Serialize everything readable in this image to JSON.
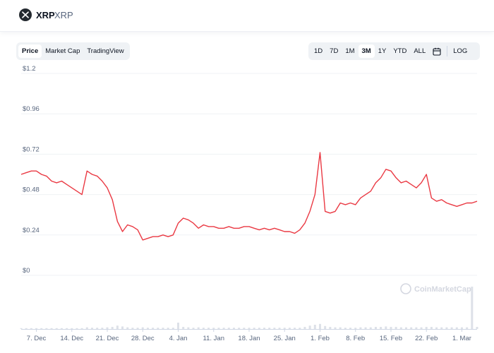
{
  "header": {
    "coin_name": "XRP",
    "coin_symbol": "XRP"
  },
  "view_tabs": [
    {
      "label": "Price",
      "active": true
    },
    {
      "label": "Market Cap",
      "active": false
    },
    {
      "label": "TradingView",
      "active": false
    }
  ],
  "range_tabs": [
    {
      "label": "1D",
      "active": false
    },
    {
      "label": "7D",
      "active": false
    },
    {
      "label": "1M",
      "active": false
    },
    {
      "label": "3M",
      "active": true
    },
    {
      "label": "1Y",
      "active": false
    },
    {
      "label": "YTD",
      "active": false
    },
    {
      "label": "ALL",
      "active": false
    }
  ],
  "calendar_icon": "calendar-icon",
  "log_label": "LOG",
  "watermark": "CoinMarketCap",
  "colors": {
    "line": "#ea3943",
    "grid": "#eff2f5",
    "axis_text": "#58667e",
    "volume": "#dde1e8"
  },
  "chart_data": {
    "type": "line",
    "title": "",
    "xlabel": "",
    "ylabel": "",
    "y_ticks": [
      "$1.2",
      "$0.96",
      "$0.72",
      "$0.48",
      "$0.24",
      "$0"
    ],
    "y_tick_values": [
      1.2,
      0.96,
      0.72,
      0.48,
      0.24,
      0
    ],
    "ylim": [
      0,
      1.2
    ],
    "x_ticks": [
      "7. Dec",
      "14. Dec",
      "21. Dec",
      "28. Dec",
      "4. Jan",
      "11. Jan",
      "18. Jan",
      "25. Jan",
      "1. Feb",
      "8. Feb",
      "15. Feb",
      "22. Feb",
      "1. Mar"
    ],
    "x_range": [
      "2020-12-04",
      "2021-03-04"
    ],
    "grid": true,
    "series": [
      {
        "name": "",
        "x": [
          "2020-12-04",
          "2020-12-05",
          "2020-12-06",
          "2020-12-07",
          "2020-12-08",
          "2020-12-09",
          "2020-12-10",
          "2020-12-11",
          "2020-12-12",
          "2020-12-13",
          "2020-12-14",
          "2020-12-15",
          "2020-12-16",
          "2020-12-17",
          "2020-12-18",
          "2020-12-19",
          "2020-12-20",
          "2020-12-21",
          "2020-12-22",
          "2020-12-23",
          "2020-12-24",
          "2020-12-25",
          "2020-12-26",
          "2020-12-27",
          "2020-12-28",
          "2020-12-29",
          "2020-12-30",
          "2020-12-31",
          "2021-01-01",
          "2021-01-02",
          "2021-01-03",
          "2021-01-04",
          "2021-01-05",
          "2021-01-06",
          "2021-01-07",
          "2021-01-08",
          "2021-01-09",
          "2021-01-10",
          "2021-01-11",
          "2021-01-12",
          "2021-01-13",
          "2021-01-14",
          "2021-01-15",
          "2021-01-16",
          "2021-01-17",
          "2021-01-18",
          "2021-01-19",
          "2021-01-20",
          "2021-01-21",
          "2021-01-22",
          "2021-01-23",
          "2021-01-24",
          "2021-01-25",
          "2021-01-26",
          "2021-01-27",
          "2021-01-28",
          "2021-01-29",
          "2021-01-30",
          "2021-01-31",
          "2021-02-01",
          "2021-02-02",
          "2021-02-03",
          "2021-02-04",
          "2021-02-05",
          "2021-02-06",
          "2021-02-07",
          "2021-02-08",
          "2021-02-09",
          "2021-02-10",
          "2021-02-11",
          "2021-02-12",
          "2021-02-13",
          "2021-02-14",
          "2021-02-15",
          "2021-02-16",
          "2021-02-17",
          "2021-02-18",
          "2021-02-19",
          "2021-02-20",
          "2021-02-21",
          "2021-02-22",
          "2021-02-23",
          "2021-02-24",
          "2021-02-25",
          "2021-02-26",
          "2021-02-27",
          "2021-02-28",
          "2021-03-01",
          "2021-03-02",
          "2021-03-03",
          "2021-03-04"
        ],
        "y": [
          0.6,
          0.61,
          0.62,
          0.62,
          0.6,
          0.59,
          0.56,
          0.55,
          0.56,
          0.54,
          0.52,
          0.5,
          0.48,
          0.62,
          0.6,
          0.59,
          0.56,
          0.52,
          0.45,
          0.32,
          0.26,
          0.3,
          0.29,
          0.27,
          0.21,
          0.22,
          0.23,
          0.23,
          0.24,
          0.23,
          0.24,
          0.31,
          0.34,
          0.33,
          0.31,
          0.28,
          0.3,
          0.29,
          0.29,
          0.28,
          0.28,
          0.29,
          0.28,
          0.28,
          0.29,
          0.29,
          0.28,
          0.27,
          0.28,
          0.27,
          0.28,
          0.27,
          0.26,
          0.26,
          0.25,
          0.27,
          0.31,
          0.38,
          0.48,
          0.73,
          0.38,
          0.37,
          0.38,
          0.43,
          0.42,
          0.43,
          0.42,
          0.46,
          0.48,
          0.5,
          0.55,
          0.58,
          0.63,
          0.62,
          0.58,
          0.55,
          0.56,
          0.54,
          0.52,
          0.55,
          0.6,
          0.46,
          0.44,
          0.45,
          0.43,
          0.42,
          0.41,
          0.42,
          0.43,
          0.43,
          0.44
        ]
      }
    ],
    "volume_y": [
      0.02,
      0.02,
      0.02,
      0.02,
      0.02,
      0.02,
      0.02,
      0.02,
      0.02,
      0.02,
      0.02,
      0.02,
      0.02,
      0.04,
      0.03,
      0.03,
      0.03,
      0.04,
      0.05,
      0.08,
      0.06,
      0.04,
      0.03,
      0.03,
      0.04,
      0.03,
      0.03,
      0.03,
      0.03,
      0.03,
      0.03,
      0.15,
      0.05,
      0.04,
      0.03,
      0.04,
      0.03,
      0.03,
      0.03,
      0.03,
      0.03,
      0.03,
      0.03,
      0.03,
      0.03,
      0.03,
      0.03,
      0.03,
      0.03,
      0.03,
      0.03,
      0.03,
      0.03,
      0.03,
      0.03,
      0.03,
      0.05,
      0.08,
      0.1,
      0.12,
      0.07,
      0.05,
      0.04,
      0.04,
      0.03,
      0.03,
      0.03,
      0.04,
      0.04,
      0.04,
      0.05,
      0.05,
      0.06,
      0.05,
      0.05,
      0.04,
      0.04,
      0.04,
      0.04,
      0.04,
      0.05,
      0.05,
      0.04,
      0.04,
      0.04,
      0.04,
      0.04,
      0.04,
      0.04,
      1.0,
      0.05
    ]
  }
}
